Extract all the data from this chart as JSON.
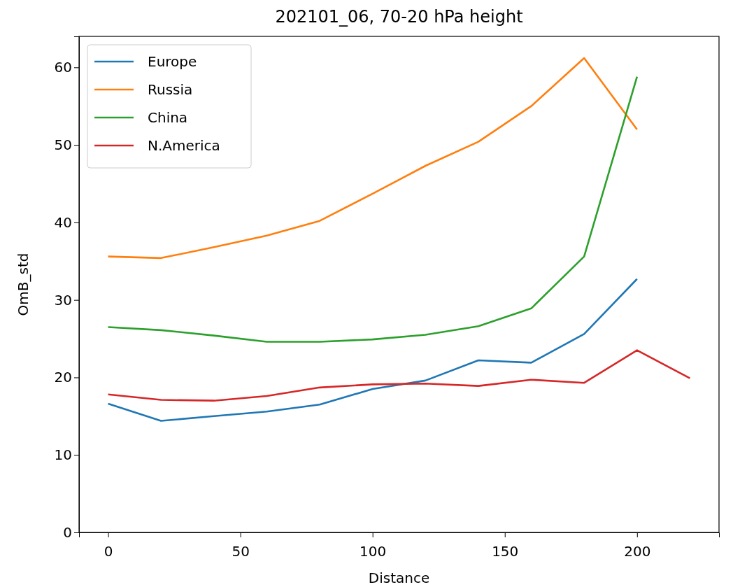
{
  "chart_data": {
    "type": "line",
    "title": "202101_06, 70-20 hPa height",
    "xlabel": "Distance",
    "ylabel": "OmB_std",
    "xlim": [
      -11,
      231
    ],
    "xticks": [
      0,
      50,
      100,
      150,
      200
    ],
    "ylim": [
      0,
      64
    ],
    "yticks": [
      0,
      10,
      20,
      30,
      40,
      50,
      60
    ],
    "grid": false,
    "legend": "top left",
    "marker": "none",
    "line_style": "solid",
    "series": [
      {
        "name": "Europe",
        "color": "#1f77b4",
        "x": [
          0,
          20,
          40,
          60,
          80,
          100,
          120,
          140,
          160,
          180,
          200
        ],
        "values": [
          16.6,
          14.4,
          15.0,
          15.6,
          16.5,
          18.5,
          19.6,
          22.2,
          21.9,
          25.6,
          32.7
        ]
      },
      {
        "name": "Russia",
        "color": "#ff7f0e",
        "x": [
          0,
          20,
          40,
          60,
          80,
          100,
          120,
          140,
          160,
          180,
          200
        ],
        "values": [
          35.6,
          35.4,
          36.8,
          38.3,
          40.2,
          43.7,
          47.3,
          50.4,
          55.0,
          61.2,
          52.0
        ]
      },
      {
        "name": "China",
        "color": "#2ca02c",
        "x": [
          0,
          20,
          40,
          60,
          80,
          100,
          120,
          140,
          160,
          180,
          200
        ],
        "values": [
          26.5,
          26.1,
          25.4,
          24.6,
          24.6,
          24.9,
          25.5,
          26.6,
          28.9,
          35.6,
          58.8
        ]
      },
      {
        "name": "N.America",
        "color": "#d62728",
        "x": [
          0,
          20,
          40,
          60,
          80,
          100,
          120,
          140,
          160,
          180,
          200,
          220
        ],
        "values": [
          17.8,
          17.1,
          17.0,
          17.6,
          18.7,
          19.1,
          19.2,
          18.9,
          19.7,
          19.3,
          23.5,
          19.9
        ]
      }
    ]
  }
}
